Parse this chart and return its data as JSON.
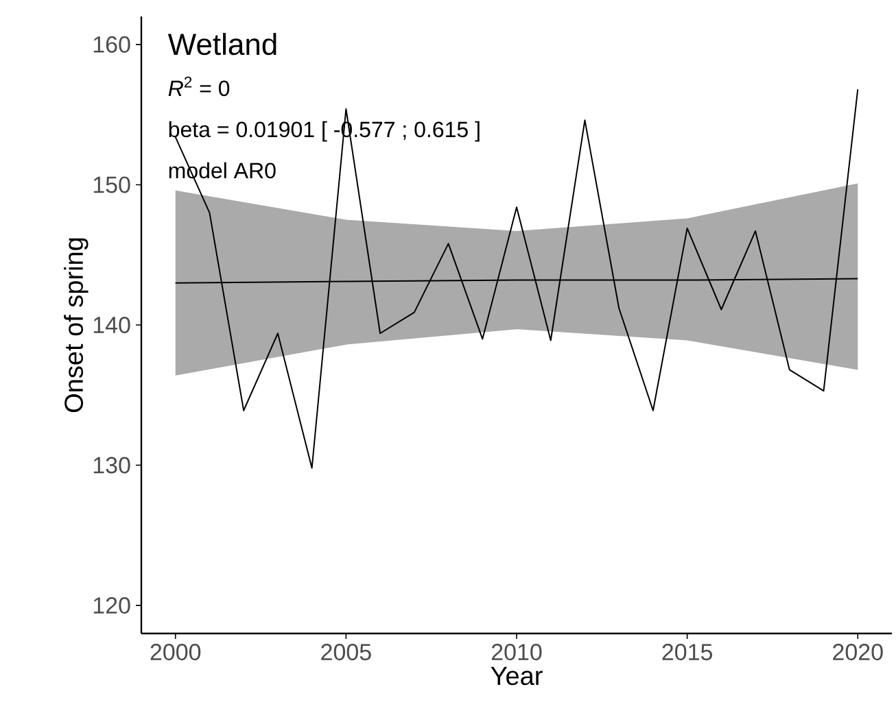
{
  "chart_data": {
    "type": "line",
    "xlabel": "Year",
    "ylabel": "Onset of spring",
    "annotations": [
      "Wetland",
      "*R*$^{2}$ = 0",
      "beta = 0.01901 [ -0.577 ;  0.615 ]",
      "model AR0"
    ],
    "x": [
      2000,
      2001,
      2002,
      2003,
      2004,
      2005,
      2006,
      2007,
      2008,
      2009,
      2010,
      2011,
      2012,
      2013,
      2014,
      2015,
      2016,
      2017,
      2018,
      2019,
      2020
    ],
    "series": [
      {
        "color": "#000000",
        "values": [
          153.4,
          148.0,
          133.9,
          139.4,
          129.8,
          155.4,
          139.4,
          140.9,
          145.8,
          139.0,
          148.4,
          138.9,
          154.6,
          141.2,
          133.9,
          146.9,
          141.1,
          146.7,
          136.8,
          135.3,
          156.8
        ]
      },
      {
        "type": "line",
        "color": "#000000",
        "x": [
          2000,
          2005,
          2010,
          2015,
          2020
        ],
        "values": [
          143.0,
          143.1,
          143.2,
          143.2,
          143.3
        ],
        "lower": [
          136.4,
          138.6,
          139.7,
          138.9,
          136.8
        ],
        "upper": [
          149.6,
          147.5,
          146.7,
          147.6,
          150.1
        ]
      }
    ],
    "xlim": [
      1999,
      2021
    ],
    "ylim": [
      118,
      162
    ],
    "xticks": [
      2000,
      2005,
      2010,
      2015,
      2020
    ],
    "yticks": [
      120,
      130,
      140,
      150,
      160
    ],
    "grid": false,
    "marker": "none",
    "line_style": "solid"
  }
}
